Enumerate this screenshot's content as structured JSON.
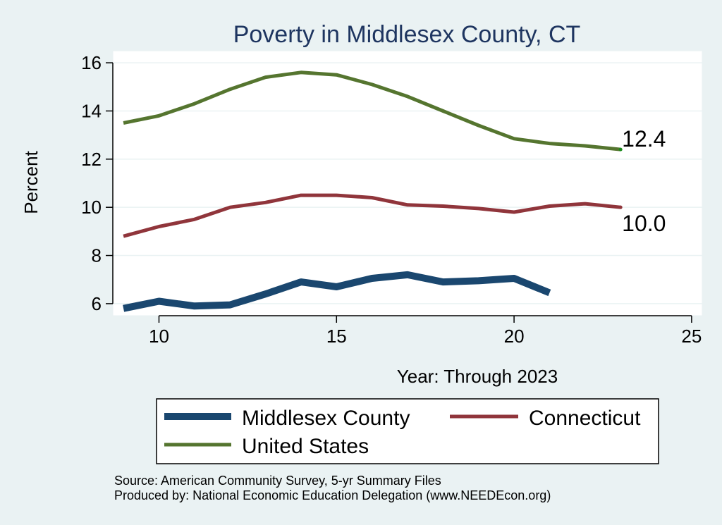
{
  "chart_data": {
    "type": "line",
    "title": "Poverty in Middlesex County, CT",
    "xlabel": "Year: Through 2023",
    "ylabel": "Percent",
    "xlim": [
      8.7,
      25.3
    ],
    "ylim": [
      5.5,
      16.5
    ],
    "xticks": [
      10,
      15,
      20,
      25
    ],
    "yticks": [
      6,
      8,
      10,
      12,
      14,
      16
    ],
    "grid": true,
    "series": [
      {
        "name": "Middlesex County",
        "color": "#1a476f",
        "x": [
          9,
          10,
          11,
          12,
          13,
          14,
          15,
          16,
          17,
          18,
          19,
          20,
          21
        ],
        "values": [
          5.8,
          6.1,
          5.9,
          5.95,
          6.4,
          6.9,
          6.7,
          7.05,
          7.2,
          6.9,
          6.95,
          7.05,
          6.45
        ]
      },
      {
        "name": "Connecticut",
        "color": "#90353b",
        "x": [
          9,
          10,
          11,
          12,
          13,
          14,
          15,
          16,
          17,
          18,
          19,
          20,
          21,
          22,
          23
        ],
        "values": [
          8.8,
          9.2,
          9.5,
          10.0,
          10.2,
          10.5,
          10.5,
          10.4,
          10.1,
          10.05,
          9.95,
          9.8,
          10.05,
          10.15,
          10.0
        ],
        "end_label": "10.0"
      },
      {
        "name": "United States",
        "color": "#55752f",
        "x": [
          9,
          10,
          11,
          12,
          13,
          14,
          15,
          16,
          17,
          18,
          19,
          20,
          21,
          22,
          23
        ],
        "values": [
          13.5,
          13.8,
          14.3,
          14.9,
          15.4,
          15.6,
          15.5,
          15.1,
          14.6,
          14.0,
          13.4,
          12.85,
          12.65,
          12.55,
          12.4
        ],
        "end_label": "12.4"
      }
    ],
    "legend": {
      "placement": "bottom",
      "entries": [
        "Middlesex County",
        "Connecticut",
        "United States"
      ]
    },
    "notes": [
      "Source: American Community Survey, 5-yr Summary Files",
      "Produced by: National Economic Education Delegation (www.NEEDEcon.org)"
    ]
  }
}
